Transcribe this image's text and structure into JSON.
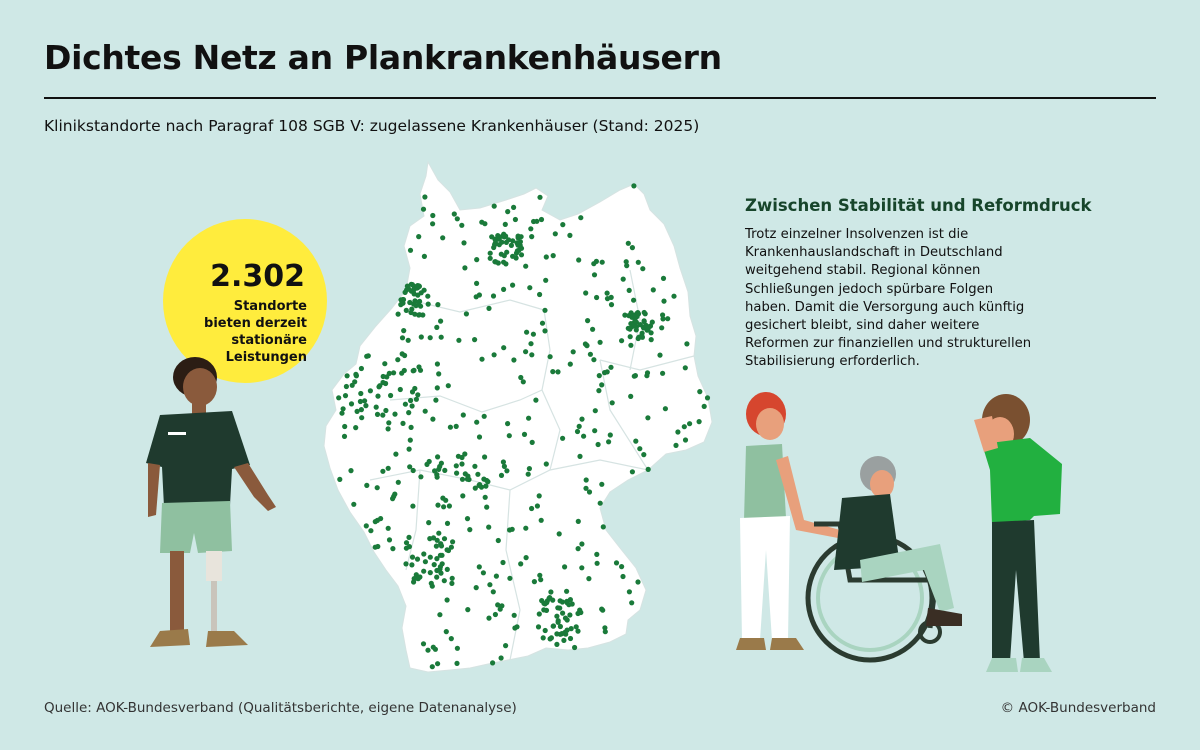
{
  "header": {
    "title": "Dichtes Netz an Plankrankenhäusern",
    "subtitle": "Klinikstandorte nach Paragraf 108 SGB V: zugelassene Krankenhäuser (Stand: 2025)"
  },
  "badge": {
    "count": "2.302",
    "text": "Standorte\nbieten derzeit\nstationäre\nLeistungen",
    "color": "#ffec3d"
  },
  "info": {
    "heading": "Zwischen Stabilität und Reformdruck",
    "body": "Trotz einzelner Insolvenzen ist die\nKrankenhauslandschaft in Deutschland\nweitgehend stabil. Regional können\nSchließungen jedoch spürbare Folgen\nhaben. Damit die Versorgung auch künftig\ngesichert bleibt, sind daher weitere\nReformen zur finanziellen und strukturellen\nStabilisierung erforderlich."
  },
  "footer": {
    "source": "Quelle: AOK-Bundesverband (Qualitätsberichte, eigene Datenanalyse)",
    "copyright": "© AOK-Bundesverband"
  },
  "colors": {
    "background": "#cfe8e6",
    "map_fill": "#ffffff",
    "marker": "#1a7a3a",
    "heading_green": "#17452b"
  },
  "map": {
    "region": "Deutschland",
    "marker_type": "Krankenhausstandort"
  }
}
